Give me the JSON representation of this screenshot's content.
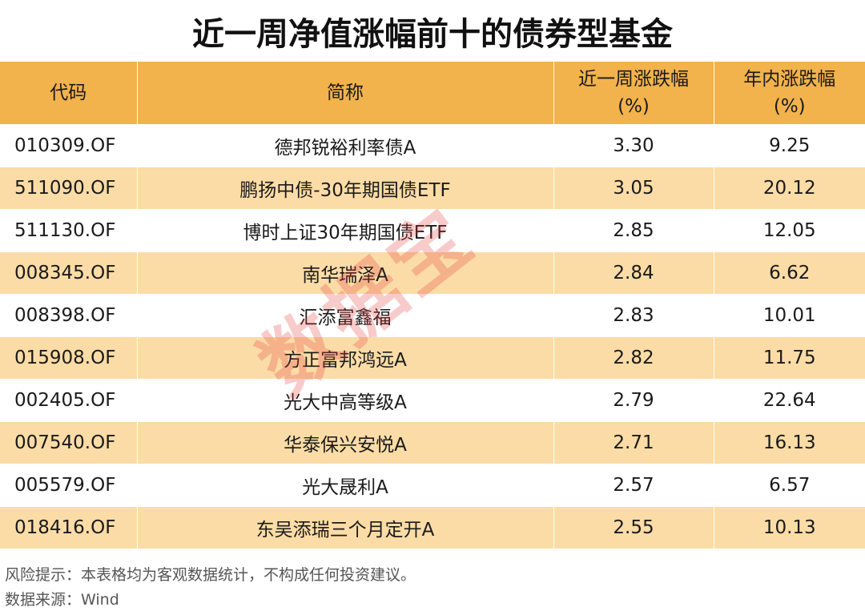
{
  "title": "近一周净值涨幅前十的债券型基金",
  "header": {
    "code": "代码",
    "name": "简称",
    "week_change_line1": "近一周涨跌幅",
    "week_change_line2": "(%)",
    "ytd_change_line1": "年内涨跌幅",
    "ytd_change_line2": "(%)"
  },
  "rows": [
    {
      "code": "010309.OF",
      "name": "德邦锐裕利率债A",
      "week": "3.30",
      "ytd": "9.25"
    },
    {
      "code": "511090.OF",
      "name": "鹏扬中债-30年期国债ETF",
      "week": "3.05",
      "ytd": "20.12"
    },
    {
      "code": "511130.OF",
      "name": "博时上证30年期国债ETF",
      "week": "2.85",
      "ytd": "12.05"
    },
    {
      "code": "008345.OF",
      "name": "南华瑞泽A",
      "week": "2.84",
      "ytd": "6.62"
    },
    {
      "code": "008398.OF",
      "name": "汇添富鑫福",
      "week": "2.83",
      "ytd": "10.01"
    },
    {
      "code": "015908.OF",
      "name": "方正富邦鸿远A",
      "week": "2.82",
      "ytd": "11.75"
    },
    {
      "code": "002405.OF",
      "name": "光大中高等级A",
      "week": "2.79",
      "ytd": "22.64"
    },
    {
      "code": "007540.OF",
      "name": "华泰保兴安悦A",
      "week": "2.71",
      "ytd": "16.13"
    },
    {
      "code": "005579.OF",
      "name": "光大晟利A",
      "week": "2.57",
      "ytd": "6.57"
    },
    {
      "code": "018416.OF",
      "name": "东吴添瑞三个月定开A",
      "week": "2.55",
      "ytd": "10.13"
    }
  ],
  "watermark": "数据宝",
  "footer": {
    "risk": "风险提示：本表格均为客观数据统计，不构成任何投资建议。",
    "source": "数据来源：Wind"
  },
  "colors": {
    "header_bg": "#f2b24c",
    "stripe_bg": "#fbdca6",
    "watermark": "#e64646"
  }
}
